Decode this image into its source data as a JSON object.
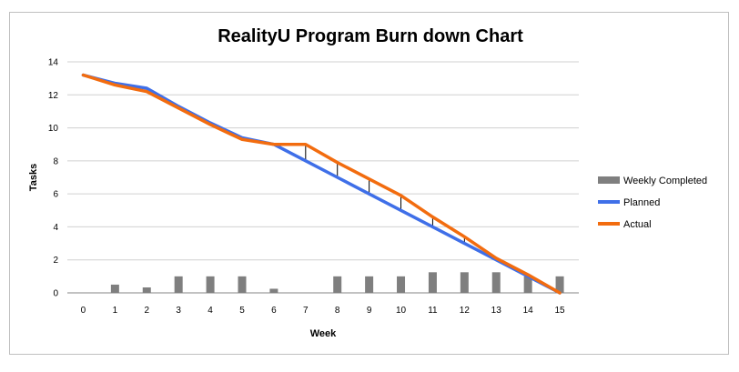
{
  "chart_data": {
    "type": "line",
    "title": "RealityU Program Burn down Chart",
    "xlabel": "Week",
    "ylabel": "Tasks",
    "x": [
      0,
      1,
      2,
      3,
      4,
      5,
      6,
      7,
      8,
      9,
      10,
      11,
      12,
      13,
      14,
      15
    ],
    "ylim": [
      0,
      14
    ],
    "yticks": [
      0,
      2,
      4,
      6,
      8,
      10,
      12,
      14
    ],
    "grid": true,
    "legend_position": "right",
    "series": [
      {
        "name": "Weekly Completed",
        "kind": "bar",
        "color": "#7f7f7f",
        "values": [
          0,
          0.5,
          0.33,
          1,
          1,
          1,
          0.25,
          0,
          1,
          1,
          1,
          1.25,
          1.25,
          1.25,
          1,
          1
        ]
      },
      {
        "name": "Planned",
        "kind": "line",
        "color": "#3f6fe8",
        "values": [
          13.2,
          12.7,
          12.4,
          11.3,
          10.3,
          9.4,
          9.0,
          8.0,
          7.0,
          6.0,
          5.0,
          4.0,
          3.0,
          2.0,
          1.0,
          0
        ]
      },
      {
        "name": "Actual",
        "kind": "line",
        "color": "#f26c0f",
        "values": [
          13.2,
          12.6,
          12.2,
          11.2,
          10.2,
          9.3,
          9.0,
          9.0,
          7.9,
          6.9,
          5.9,
          4.6,
          3.4,
          2.1,
          1.1,
          0
        ]
      }
    ]
  }
}
